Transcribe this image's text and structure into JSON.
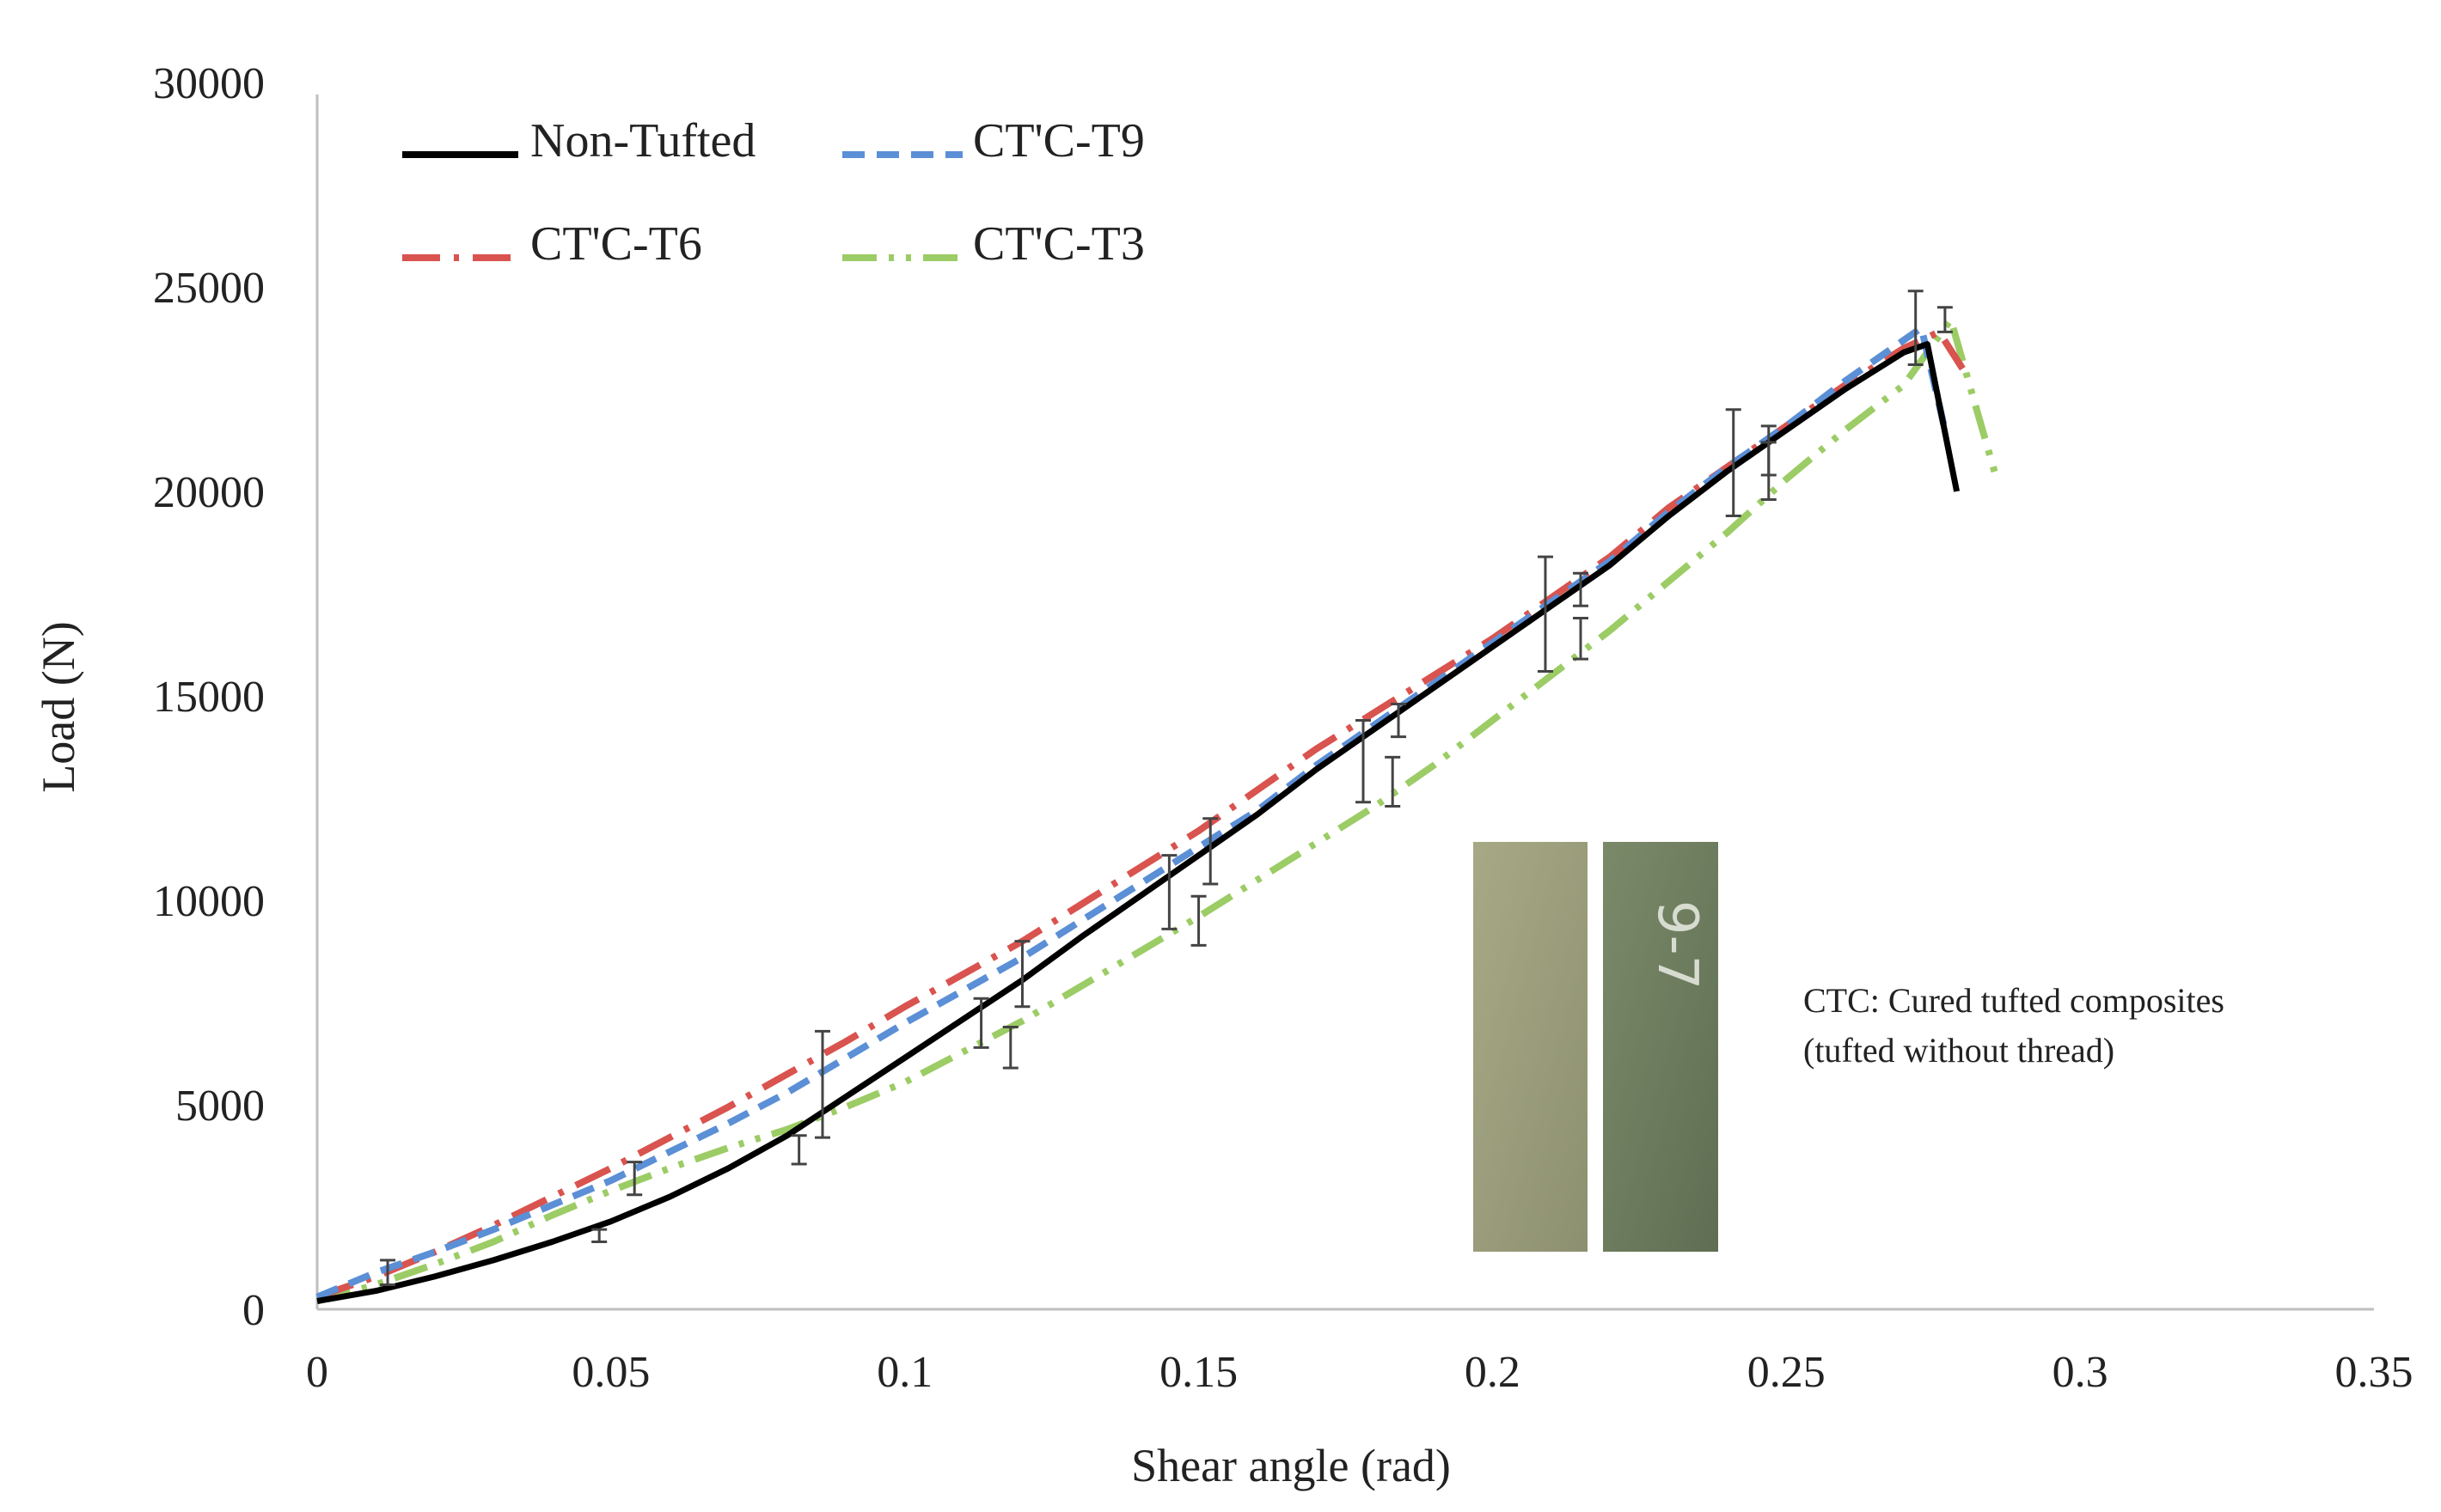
{
  "chart_data": {
    "type": "line",
    "title": "",
    "xlabel": "Shear angle (rad)",
    "ylabel": "Load (N)",
    "xlim": [
      0,
      0.35
    ],
    "ylim": [
      0,
      30000
    ],
    "x_ticks": [
      0,
      0.05,
      0.1,
      0.15,
      0.2,
      0.25,
      0.3,
      0.35
    ],
    "x_tick_labels": [
      "0",
      "0.05",
      "0.1",
      "0.15",
      "0.2",
      "0.25",
      "0.3",
      "0.35"
    ],
    "y_ticks": [
      0,
      5000,
      10000,
      15000,
      20000,
      25000,
      30000
    ],
    "y_tick_labels": [
      "0",
      "5000",
      "10000",
      "15000",
      "20000",
      "25000",
      "30000"
    ],
    "grid": false,
    "legend_position": "top-left",
    "series": [
      {
        "name": "Non-Tufted",
        "color": "#000000",
        "style": "solid",
        "x": [
          0,
          0.01,
          0.02,
          0.03,
          0.04,
          0.05,
          0.06,
          0.07,
          0.08,
          0.09,
          0.1,
          0.11,
          0.12,
          0.13,
          0.14,
          0.15,
          0.16,
          0.17,
          0.18,
          0.19,
          0.2,
          0.21,
          0.22,
          0.23,
          0.24,
          0.25,
          0.26,
          0.27,
          0.274,
          0.279
        ],
        "y": [
          200,
          450,
          800,
          1200,
          1650,
          2150,
          2750,
          3450,
          4250,
          5200,
          6150,
          7100,
          8050,
          9100,
          10100,
          11100,
          12100,
          13200,
          14200,
          15200,
          16200,
          17200,
          18200,
          19400,
          20500,
          21500,
          22500,
          23400,
          23600,
          20000
        ],
        "error_bars": [
          {
            "x": 0.048,
            "y": 1800,
            "err": 150
          },
          {
            "x": 0.082,
            "y": 3900,
            "err": 350
          },
          {
            "x": 0.113,
            "y": 7000,
            "err": 600
          },
          {
            "x": 0.145,
            "y": 10200,
            "err": 900
          },
          {
            "x": 0.178,
            "y": 13400,
            "err": 1000
          },
          {
            "x": 0.209,
            "y": 17000,
            "err": 1400
          },
          {
            "x": 0.241,
            "y": 20700,
            "err": 1300
          },
          {
            "x": 0.272,
            "y": 24000,
            "err": 900
          }
        ]
      },
      {
        "name": "CT'C-T9",
        "color": "#5b8fd6",
        "style": "dashed",
        "x": [
          0,
          0.01,
          0.02,
          0.03,
          0.04,
          0.05,
          0.06,
          0.07,
          0.08,
          0.09,
          0.1,
          0.11,
          0.12,
          0.13,
          0.14,
          0.15,
          0.16,
          0.17,
          0.18,
          0.19,
          0.2,
          0.21,
          0.22,
          0.23,
          0.24,
          0.25,
          0.26,
          0.27,
          0.273,
          0.277
        ],
        "y": [
          300,
          900,
          1400,
          1950,
          2550,
          3150,
          3850,
          4550,
          5300,
          6150,
          7000,
          7800,
          8600,
          9500,
          10400,
          11300,
          12200,
          13300,
          14300,
          15300,
          16300,
          17300,
          18300,
          19500,
          20600,
          21600,
          22700,
          23700,
          24000,
          21500
        ],
        "error_bars": [
          {
            "x": 0.012,
            "y": 900,
            "err": 300
          },
          {
            "x": 0.054,
            "y": 3200,
            "err": 400
          },
          {
            "x": 0.086,
            "y": 5500,
            "err": 1300
          },
          {
            "x": 0.12,
            "y": 8200,
            "err": 800
          },
          {
            "x": 0.152,
            "y": 11200,
            "err": 800
          },
          {
            "x": 0.184,
            "y": 14400,
            "err": 400
          },
          {
            "x": 0.215,
            "y": 17600,
            "err": 400
          },
          {
            "x": 0.247,
            "y": 21000,
            "err": 600
          }
        ]
      },
      {
        "name": "CT'C-T6",
        "color": "#d9534f",
        "style": "dashdot",
        "x": [
          0,
          0.01,
          0.02,
          0.03,
          0.04,
          0.05,
          0.06,
          0.07,
          0.08,
          0.09,
          0.1,
          0.11,
          0.12,
          0.13,
          0.14,
          0.15,
          0.16,
          0.17,
          0.18,
          0.19,
          0.2,
          0.21,
          0.22,
          0.23,
          0.24,
          0.25,
          0.26,
          0.27,
          0.276,
          0.28
        ],
        "y": [
          300,
          800,
          1400,
          2050,
          2750,
          3450,
          4200,
          4950,
          5750,
          6550,
          7400,
          8200,
          9000,
          9900,
          10800,
          11700,
          12700,
          13700,
          14600,
          15500,
          16400,
          17400,
          18400,
          19600,
          20600,
          21600,
          22600,
          23500,
          23900,
          23000
        ],
        "error_bars": []
      },
      {
        "name": "CT'C-T3",
        "color": "#9ccc65",
        "style": "dashdotdot",
        "x": [
          0,
          0.01,
          0.02,
          0.03,
          0.04,
          0.05,
          0.06,
          0.07,
          0.08,
          0.09,
          0.1,
          0.11,
          0.12,
          0.13,
          0.14,
          0.15,
          0.16,
          0.17,
          0.18,
          0.19,
          0.2,
          0.21,
          0.22,
          0.23,
          0.24,
          0.25,
          0.26,
          0.27,
          0.278,
          0.286
        ],
        "y": [
          200,
          600,
          1100,
          1650,
          2300,
          2900,
          3450,
          3950,
          4400,
          4950,
          5550,
          6300,
          7050,
          7900,
          8750,
          9600,
          10500,
          11400,
          12300,
          13300,
          14400,
          15500,
          16600,
          17800,
          19000,
          20300,
          21500,
          22600,
          24200,
          20200
        ],
        "error_bars": [
          {
            "x": 0.118,
            "y": 6400,
            "err": 500
          },
          {
            "x": 0.15,
            "y": 9500,
            "err": 600
          },
          {
            "x": 0.183,
            "y": 12900,
            "err": 600
          },
          {
            "x": 0.215,
            "y": 16400,
            "err": 500
          },
          {
            "x": 0.247,
            "y": 20500,
            "err": 700
          },
          {
            "x": 0.277,
            "y": 24200,
            "err": 300
          }
        ]
      }
    ],
    "annotations": [
      "CTC: Cured tufted composites",
      "(tufted without thread)"
    ]
  },
  "inset": {
    "label": "9-7",
    "panel_left_color": "#9ea07c",
    "panel_right_color": "#6d7c5f"
  }
}
